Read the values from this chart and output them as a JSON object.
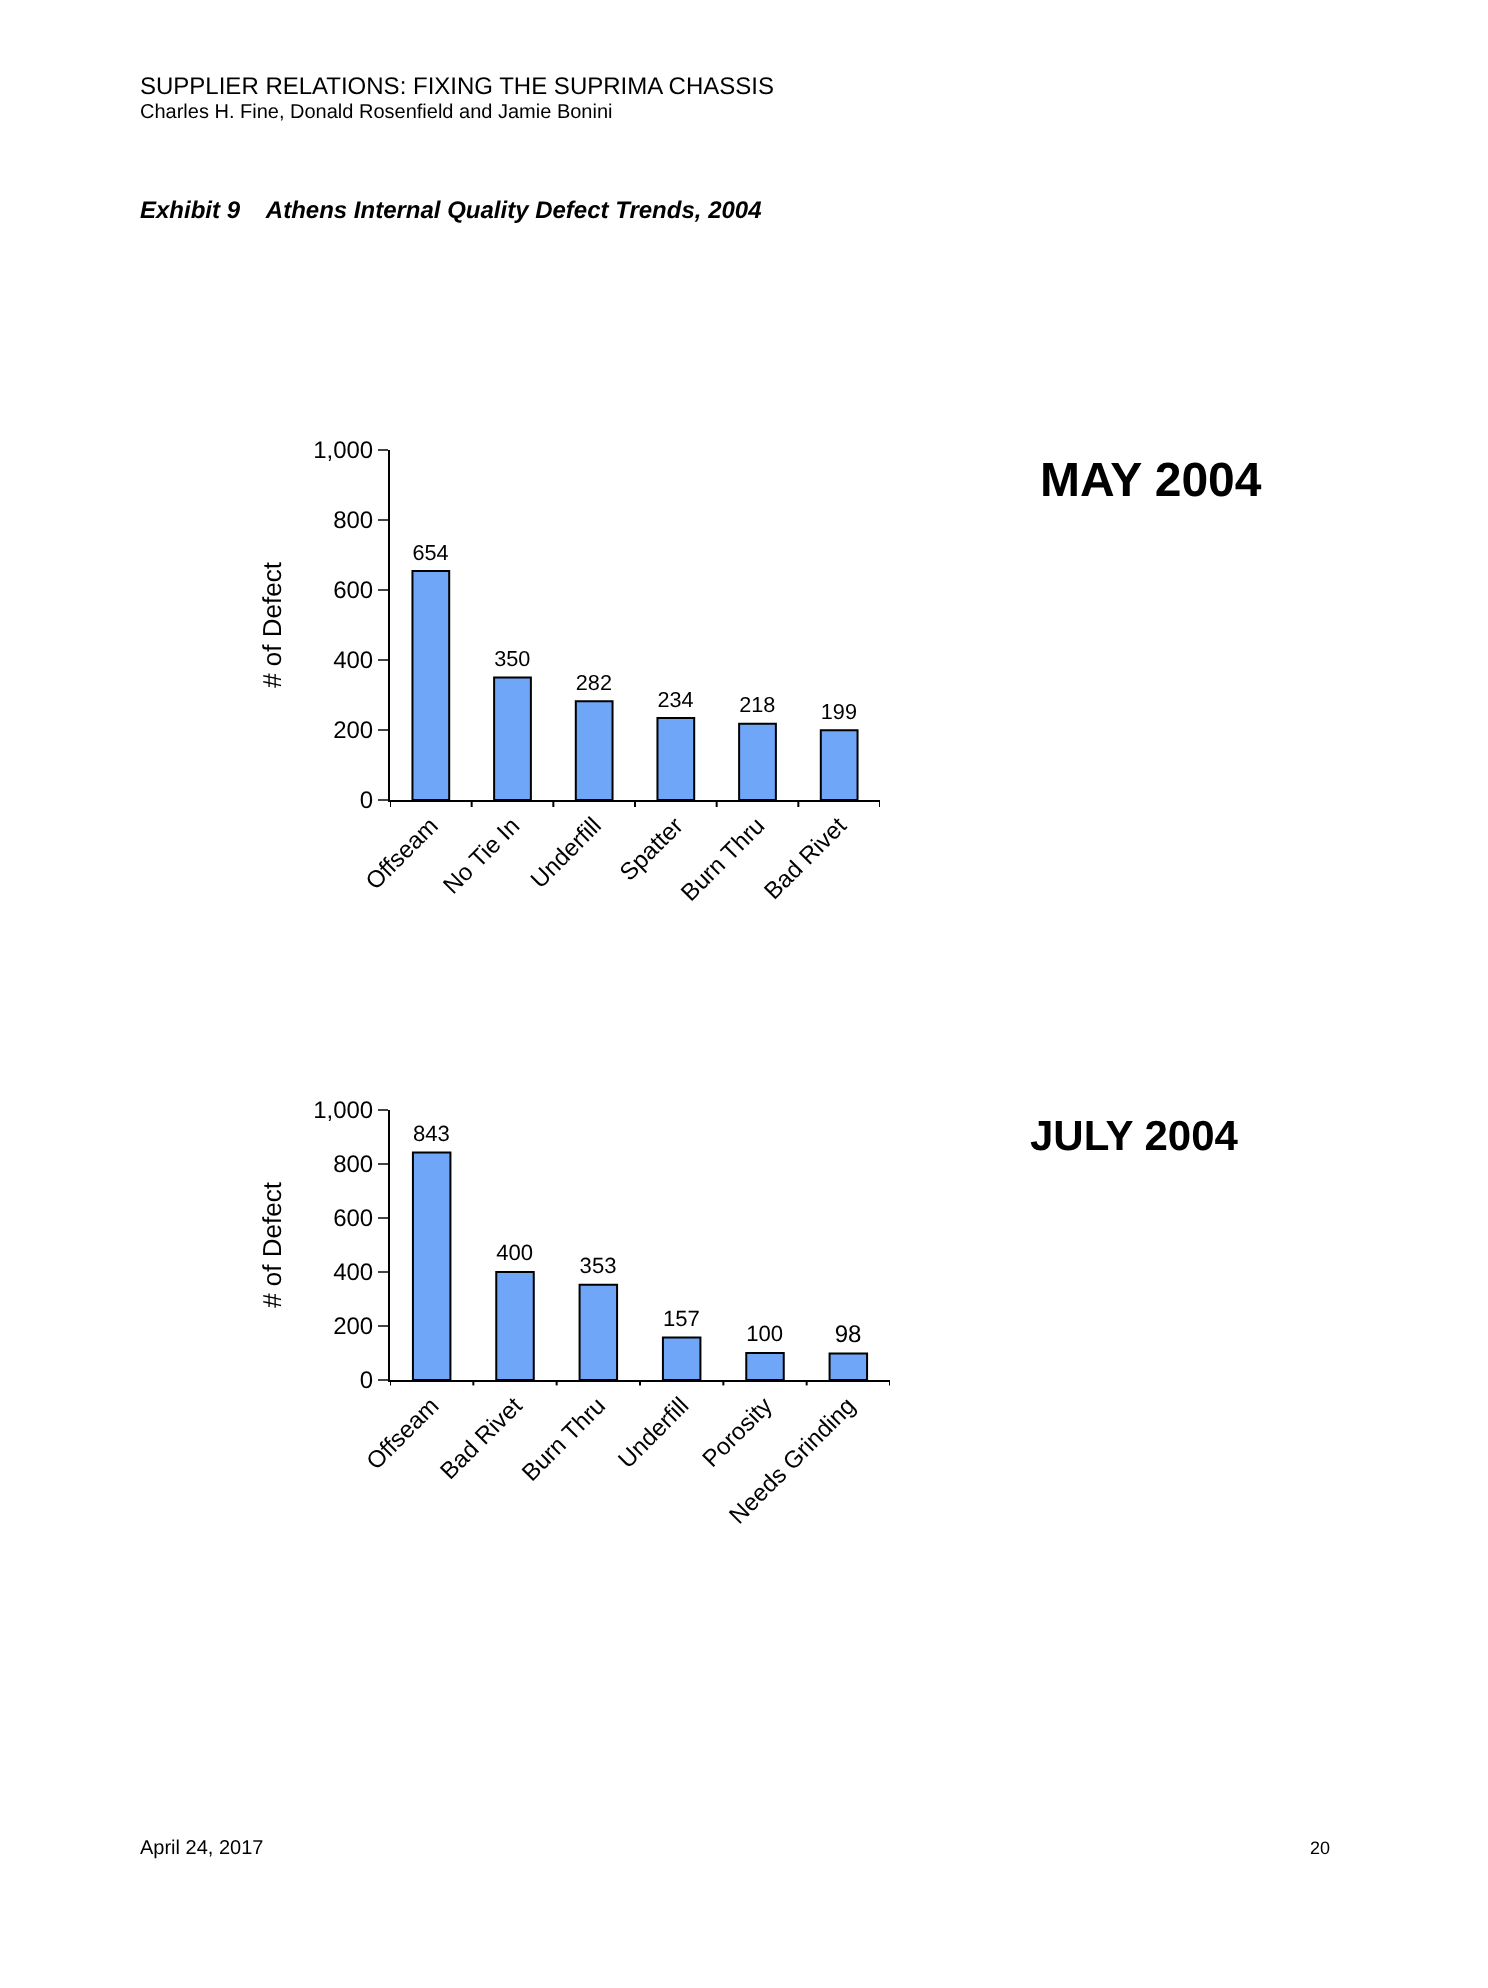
{
  "chart_data": [
    {
      "type": "bar",
      "ylabel": "# of Defect",
      "annotations": [
        "MAY 2004",
        "SUPPLIER RELATIONS: FIXING THE SUPRIMA CHASSIS",
        "Charles H. Fine, Donald Rosenfield and Jamie Bonini",
        "Exhibit 9    Athens Internal Quality Defect Trends, 2004",
        "April 24, 2017",
        "20"
      ],
      "categories": [
        "Offseam",
        "No Tie In",
        "Underfill",
        "Spatter",
        "Burn Thru",
        "Bad Rivet"
      ],
      "values": [
        654,
        350,
        282,
        234,
        218,
        199
      ],
      "color": "#6fa6f7",
      "ylim": [
        0,
        1000
      ],
      "yticks": [
        0,
        200,
        400,
        600,
        800,
        {
          "value": 1000,
          "label": "1,000"
        }
      ],
      "data_labels": true
    },
    {
      "type": "bar",
      "ylabel": "# of Defect",
      "annotations": [
        "JULY 2004"
      ],
      "categories": [
        "Offseam",
        "Bad Rivet",
        "Burn Thru",
        "Underfill",
        "Porosity",
        "Needs Grinding"
      ],
      "values": [
        843,
        400,
        353,
        157,
        100,
        98
      ],
      "color": "#6fa6f7",
      "ylim": [
        0,
        1000
      ],
      "yticks": [
        0,
        200,
        400,
        600,
        800,
        {
          "value": 1000,
          "label": "1,000"
        }
      ],
      "data_labels": true
    }
  ]
}
